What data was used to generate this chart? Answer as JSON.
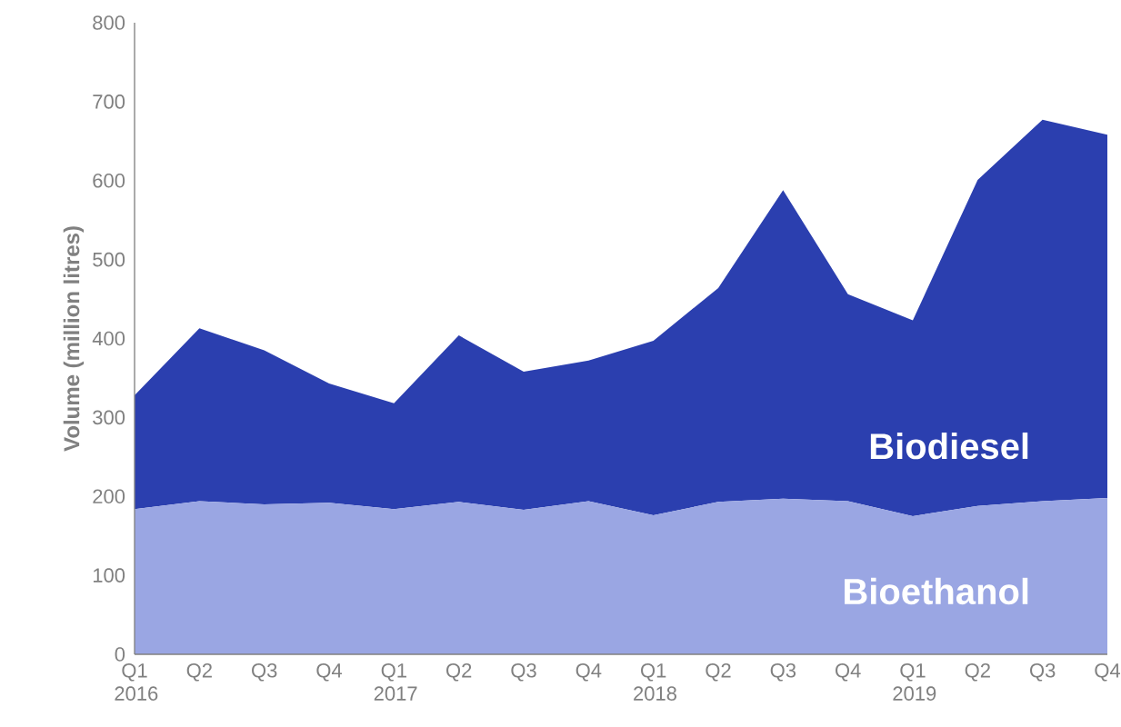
{
  "chart_data": {
    "type": "area",
    "stacked": true,
    "ylabel": "Volume  (million litres)",
    "categories": [
      "Q1 2016",
      "Q2",
      "Q3",
      "Q4",
      "Q1 2017",
      "Q2",
      "Q3",
      "Q4",
      "Q1 2018",
      "Q2",
      "Q3",
      "Q4",
      "Q1 2019",
      "Q2",
      "Q3",
      "Q4"
    ],
    "series": [
      {
        "name": "Bioethanol",
        "color": "#9aa6e3",
        "values": [
          184,
          194,
          190,
          192,
          184,
          193,
          183,
          194,
          176,
          193,
          197,
          194,
          175,
          188,
          194,
          198
        ]
      },
      {
        "name": "Biodiesel",
        "color": "#2b3faf",
        "values": [
          144,
          219,
          195,
          151,
          134,
          211,
          175,
          178,
          221,
          271,
          391,
          262,
          248,
          413,
          483,
          460
        ]
      }
    ],
    "ylim": [
      0,
      800
    ],
    "yticks": [
      0,
      100,
      200,
      300,
      400,
      500,
      600,
      700,
      800
    ],
    "grid": false
  }
}
